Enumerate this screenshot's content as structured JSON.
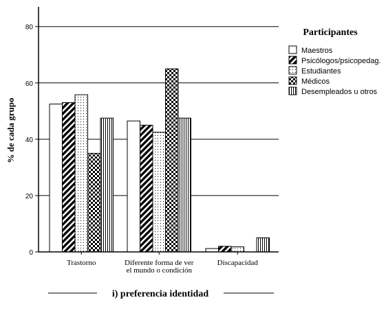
{
  "chart_data": {
    "type": "bar",
    "title": "",
    "xlabel": "i) preferencia identidad",
    "ylabel": "% de cada grupo",
    "ylim": [
      0,
      87
    ],
    "yticks": [
      0,
      20,
      40,
      60,
      80
    ],
    "grid": "horizontal",
    "legend_position": "right",
    "legend_title": "Participantes",
    "categories": [
      [
        "Trastorno"
      ],
      [
        "Diferente forma de ver",
        "el mundo o  condición"
      ],
      [
        "Discapacidad"
      ]
    ],
    "series": [
      {
        "name": "Maestros",
        "pattern": "white",
        "values": [
          52.5,
          46.5,
          1.2
        ]
      },
      {
        "name": "Psicólogos/psicopedag.",
        "pattern": "diagonal",
        "values": [
          53.0,
          45.0,
          2.0
        ]
      },
      {
        "name": "Estudiantes",
        "pattern": "dotted",
        "values": [
          55.8,
          42.5,
          1.8
        ]
      },
      {
        "name": "Médicos",
        "pattern": "checker",
        "values": [
          35.0,
          65.0,
          0
        ]
      },
      {
        "name": "Desempleados u otros",
        "pattern": "vertical",
        "values": [
          47.5,
          47.5,
          5.0
        ]
      }
    ]
  }
}
